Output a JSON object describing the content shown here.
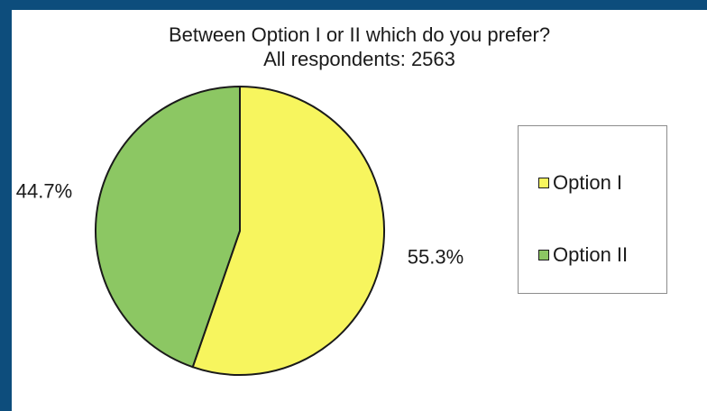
{
  "chart_data": {
    "type": "pie",
    "title": "Between Option I or II which do you prefer?",
    "subtitle": "All respondents:  2563",
    "slices": [
      {
        "label": "Option I",
        "value": 55.3,
        "display": "55.3%",
        "color": "#f7f55e"
      },
      {
        "label": "Option II",
        "value": 44.7,
        "display": "44.7%",
        "color": "#8cc763"
      }
    ],
    "legend_position": "right",
    "start_angle_deg": 0,
    "direction": "clockwise"
  }
}
